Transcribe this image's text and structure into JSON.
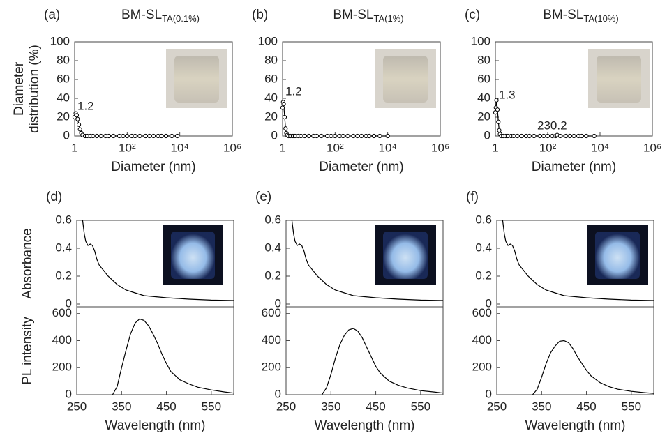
{
  "chart_data": [
    {
      "type": "scatter",
      "label": "(a)",
      "title": "BM-SL",
      "title_sub": "TA(0.1%)",
      "ylabel": [
        "Diameter",
        "distribution (%)"
      ],
      "xlabel": "Diameter (nm)",
      "xscale": "log",
      "xlim": [
        1,
        1000000
      ],
      "xticks": [
        1,
        {
          "value": 100,
          "label": "10²"
        },
        {
          "value": 10000,
          "label": "10⁴"
        },
        {
          "value": 1000000,
          "label": "10⁶"
        }
      ],
      "ylim": [
        0,
        100
      ],
      "yticks": [
        0,
        20,
        40,
        60,
        80,
        100
      ],
      "color": "#000000",
      "annotations": [
        "1.2"
      ],
      "x": [
        1,
        1.1,
        1.2,
        1.3,
        1.45,
        1.6,
        1.8,
        2,
        2.5,
        3,
        4,
        5,
        7,
        10,
        15,
        20,
        30,
        50,
        70,
        100,
        150,
        200,
        300,
        500,
        700,
        1000,
        1500,
        2000,
        3000,
        5000,
        8000
      ],
      "values": [
        20,
        24,
        22,
        18,
        12,
        7,
        3,
        1,
        0,
        0,
        0,
        0,
        0,
        0,
        0,
        0,
        0,
        0,
        0,
        0,
        0,
        0,
        0,
        0,
        0,
        0,
        0,
        0,
        0,
        0,
        0
      ]
    },
    {
      "type": "scatter",
      "label": "(b)",
      "title": "BM-SL",
      "title_sub": "TA(1%)",
      "xlabel": "Diameter (nm)",
      "xscale": "log",
      "xlim": [
        1,
        1000000
      ],
      "xticks": [
        1,
        {
          "value": 100,
          "label": "10²"
        },
        {
          "value": 10000,
          "label": "10⁴"
        },
        {
          "value": 1000000,
          "label": "10⁶"
        }
      ],
      "ylim": [
        0,
        100
      ],
      "yticks": [
        0,
        20,
        40,
        60,
        80,
        100
      ],
      "color": "#000000",
      "annotations": [
        "1.2"
      ],
      "x": [
        1,
        1.05,
        1.1,
        1.2,
        1.3,
        1.4,
        1.5,
        1.7,
        2,
        2.5,
        3,
        4,
        5,
        7,
        10,
        15,
        20,
        30,
        50,
        70,
        100,
        150,
        200,
        300,
        500,
        700,
        1000,
        1500,
        2000,
        3000,
        5000,
        10000
      ],
      "values": [
        30,
        36,
        34,
        20,
        8,
        3,
        1,
        0,
        0,
        0,
        0,
        0,
        0,
        0,
        0,
        0,
        0,
        0,
        0,
        0,
        0,
        0,
        0,
        0,
        0,
        0,
        0,
        0,
        0,
        0,
        0,
        0
      ]
    },
    {
      "type": "scatter",
      "label": "(c)",
      "title": "BM-SL",
      "title_sub": "TA(10%)",
      "xlabel": "Diameter (nm)",
      "xscale": "log",
      "xlim": [
        1,
        1000000
      ],
      "xticks": [
        1,
        {
          "value": 100,
          "label": "10²"
        },
        {
          "value": 10000,
          "label": "10⁴"
        },
        {
          "value": 1000000,
          "label": "10⁶"
        }
      ],
      "ylim": [
        0,
        100
      ],
      "yticks": [
        0,
        20,
        40,
        60,
        80,
        100
      ],
      "color": "#000000",
      "annotations": [
        "1.3",
        "230.2"
      ],
      "x": [
        1,
        1.05,
        1.1,
        1.2,
        1.3,
        1.4,
        1.5,
        1.7,
        2,
        2.5,
        3,
        4,
        5,
        7,
        10,
        15,
        20,
        30,
        50,
        70,
        100,
        150,
        200,
        230,
        300,
        500,
        700,
        1000,
        1500,
        2000,
        3000,
        6000
      ],
      "values": [
        25,
        30,
        38,
        28,
        15,
        6,
        2,
        0,
        0,
        0,
        0,
        0,
        0,
        0,
        0,
        0,
        0,
        0,
        0,
        0,
        0,
        0,
        0,
        1,
        0,
        0,
        0,
        0,
        0,
        0,
        0,
        0
      ]
    },
    {
      "type": "line",
      "label": "(d)",
      "ylabel": "Absorbance",
      "xlim": [
        250,
        600
      ],
      "ylim": [
        -0.02,
        0.6
      ],
      "yticks": [
        0,
        0.2,
        0.4,
        0.6
      ],
      "color": "#000000",
      "x": [
        263,
        267,
        270,
        275,
        280,
        285,
        290,
        295,
        300,
        310,
        320,
        340,
        360,
        380,
        400,
        450,
        500,
        550,
        600
      ],
      "values": [
        0.6,
        0.5,
        0.45,
        0.42,
        0.43,
        0.42,
        0.38,
        0.32,
        0.28,
        0.24,
        0.2,
        0.14,
        0.1,
        0.08,
        0.06,
        0.045,
        0.035,
        0.028,
        0.025
      ]
    },
    {
      "type": "line",
      "label": "(e)",
      "xlim": [
        250,
        600
      ],
      "ylim": [
        -0.02,
        0.6
      ],
      "yticks": [
        0,
        0.2,
        0.4,
        0.6
      ],
      "color": "#000000",
      "x": [
        263,
        267,
        270,
        275,
        280,
        285,
        290,
        295,
        300,
        310,
        320,
        340,
        360,
        380,
        400,
        450,
        500,
        550,
        600
      ],
      "values": [
        0.6,
        0.5,
        0.45,
        0.42,
        0.43,
        0.42,
        0.38,
        0.32,
        0.28,
        0.24,
        0.2,
        0.14,
        0.1,
        0.08,
        0.06,
        0.045,
        0.035,
        0.028,
        0.025
      ]
    },
    {
      "type": "line",
      "label": "(f)",
      "xlim": [
        250,
        600
      ],
      "ylim": [
        -0.02,
        0.6
      ],
      "yticks": [
        0,
        0.2,
        0.4,
        0.6
      ],
      "color": "#000000",
      "x": [
        263,
        267,
        270,
        275,
        280,
        285,
        290,
        295,
        300,
        310,
        320,
        340,
        360,
        380,
        400,
        450,
        500,
        550,
        600
      ],
      "values": [
        0.6,
        0.5,
        0.45,
        0.42,
        0.43,
        0.42,
        0.38,
        0.32,
        0.28,
        0.24,
        0.2,
        0.14,
        0.1,
        0.08,
        0.06,
        0.045,
        0.035,
        0.028,
        0.025
      ]
    },
    {
      "type": "line",
      "ylabel": "PL intensity",
      "xlabel": "Wavelength (nm)",
      "xlim": [
        250,
        600
      ],
      "xticks": [
        250,
        350,
        450,
        550
      ],
      "ylim": [
        0,
        650
      ],
      "yticks": [
        0,
        200,
        400,
        600
      ],
      "color": "#000000",
      "x": [
        330,
        340,
        350,
        360,
        370,
        380,
        390,
        400,
        410,
        420,
        430,
        440,
        450,
        460,
        480,
        500,
        520,
        550,
        580,
        600
      ],
      "values": [
        0,
        60,
        200,
        330,
        450,
        530,
        560,
        550,
        510,
        450,
        380,
        300,
        230,
        170,
        110,
        80,
        55,
        35,
        20,
        12
      ]
    },
    {
      "type": "line",
      "xlabel": "Wavelength (nm)",
      "xlim": [
        250,
        600
      ],
      "xticks": [
        250,
        350,
        450,
        550
      ],
      "ylim": [
        0,
        650
      ],
      "yticks": [
        0,
        200,
        400,
        600
      ],
      "color": "#000000",
      "x": [
        330,
        340,
        350,
        360,
        370,
        380,
        390,
        400,
        410,
        420,
        430,
        440,
        450,
        460,
        480,
        500,
        520,
        550,
        580,
        600
      ],
      "values": [
        0,
        50,
        150,
        270,
        370,
        440,
        480,
        490,
        470,
        420,
        350,
        280,
        210,
        160,
        100,
        70,
        50,
        30,
        20,
        12
      ]
    },
    {
      "type": "line",
      "xlabel": "Wavelength (nm)",
      "xlim": [
        250,
        600
      ],
      "xticks": [
        250,
        350,
        450,
        550
      ],
      "ylim": [
        0,
        650
      ],
      "yticks": [
        0,
        200,
        400,
        600
      ],
      "color": "#000000",
      "x": [
        330,
        340,
        350,
        360,
        370,
        380,
        390,
        400,
        410,
        420,
        430,
        440,
        450,
        460,
        480,
        500,
        520,
        550,
        580,
        600
      ],
      "values": [
        0,
        40,
        130,
        230,
        310,
        360,
        395,
        400,
        385,
        340,
        280,
        230,
        180,
        140,
        90,
        60,
        40,
        25,
        15,
        10
      ]
    }
  ]
}
